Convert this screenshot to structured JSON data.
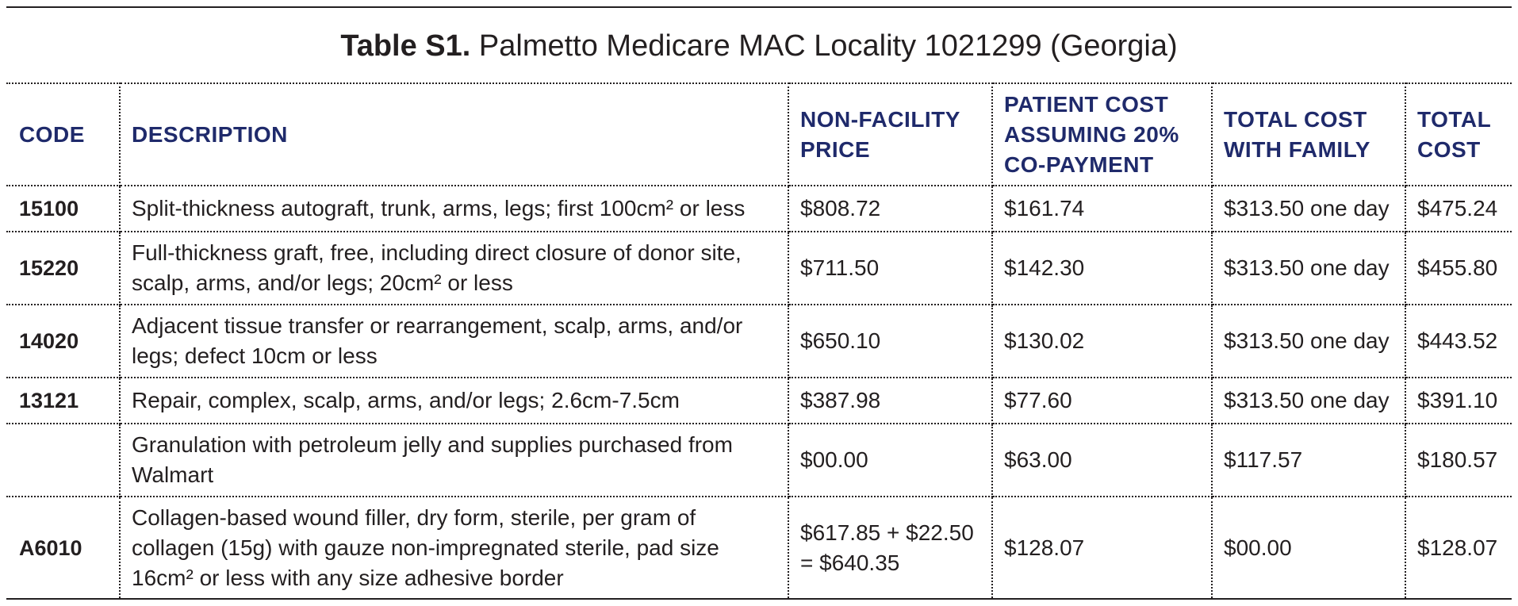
{
  "title": {
    "label": "Table S1.",
    "text": "Palmetto Medicare MAC Locality 1021299 (Georgia)"
  },
  "columns": [
    "CODE",
    "DESCRIPTION",
    "NON-FACILITY PRICE",
    "PATIENT COST ASSUMING 20% CO-PAYMENT",
    "TOTAL COST WITH FAMILY",
    "TOTAL COST"
  ],
  "rows": [
    {
      "code": "15100",
      "description": "Split-thickness autograft, trunk, arms, legs; first 100cm² or less",
      "non_facility_price": "$808.72",
      "patient_cost": "$161.74",
      "total_cost_with_family": "$313.50 one day",
      "total_cost": "$475.24"
    },
    {
      "code": "15220",
      "description": "Full-thickness graft, free, including direct closure of donor site, scalp, arms, and/or legs; 20cm² or less",
      "non_facility_price": "$711.50",
      "patient_cost": "$142.30",
      "total_cost_with_family": "$313.50 one day",
      "total_cost": "$455.80"
    },
    {
      "code": "14020",
      "description": "Adjacent tissue transfer or rearrangement, scalp, arms, and/or legs; defect 10cm or less",
      "non_facility_price": "$650.10",
      "patient_cost": "$130.02",
      "total_cost_with_family": "$313.50 one day",
      "total_cost": "$443.52"
    },
    {
      "code": "13121",
      "description": "Repair, complex, scalp, arms, and/or legs; 2.6cm-7.5cm",
      "non_facility_price": "$387.98",
      "patient_cost": "$77.60",
      "total_cost_with_family": "$313.50 one day",
      "total_cost": "$391.10"
    },
    {
      "code": "",
      "description": "Granulation with petroleum jelly and supplies purchased from Walmart",
      "non_facility_price": "$00.00",
      "patient_cost": "$63.00",
      "total_cost_with_family": "$117.57",
      "total_cost": "$180.57"
    },
    {
      "code": "A6010",
      "description": "Collagen-based wound filler, dry form, sterile, per gram of collagen (15g) with gauze non-impregnated sterile, pad size 16cm² or less with any size adhesive border",
      "non_facility_price": "$617.85 + $22.50 = $640.35",
      "patient_cost": "$128.07",
      "total_cost_with_family": "$00.00",
      "total_cost": "$128.07"
    }
  ],
  "colors": {
    "header_text": "#1f2a6b",
    "body_text": "#231f20",
    "rule": "#231f20"
  }
}
